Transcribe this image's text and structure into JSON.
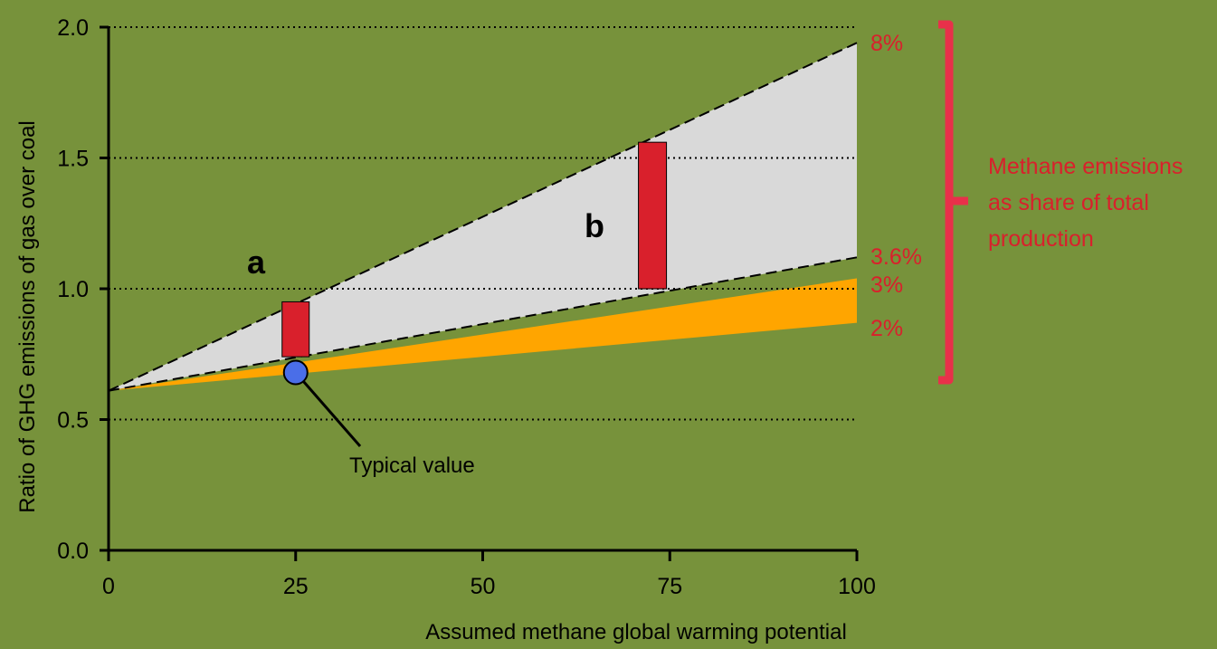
{
  "colors": {
    "background": "#77923b",
    "gray_band": "#d9d9d9",
    "orange_band": "#ffa500",
    "red_bar": "#d9202c",
    "percent_text": "#d9202c",
    "bracket": "#e8304a",
    "typical_point": "#4a6ee8"
  },
  "chart_data": {
    "type": "area",
    "xlabel": "Assumed methane global warming potential",
    "ylabel": "Ratio of GHG emissions of gas over coal",
    "xlim": [
      0,
      100
    ],
    "ylim": [
      0,
      2.0
    ],
    "xticks": [
      "0",
      "25",
      "50",
      "75",
      "100"
    ],
    "yticks": [
      "0.0",
      "0.5",
      "1.0",
      "1.5",
      "2.0"
    ],
    "grid": "horizontal dotted at 0.5, 1.0, 1.5, 2.0",
    "origin": {
      "x": 0,
      "y": 0.61
    },
    "series": [
      {
        "name": "8%",
        "x": [
          0,
          100
        ],
        "y": [
          0.61,
          1.94
        ],
        "style": "dashed"
      },
      {
        "name": "3.6%",
        "x": [
          0,
          100
        ],
        "y": [
          0.61,
          1.12
        ],
        "style": "dashed"
      },
      {
        "name": "3%",
        "x": [
          0,
          100
        ],
        "y": [
          0.61,
          1.04
        ],
        "style": "band edge"
      },
      {
        "name": "2%",
        "x": [
          0,
          100
        ],
        "y": [
          0.61,
          0.87
        ],
        "style": "band edge"
      }
    ],
    "bands": [
      {
        "from_series": "3.6%",
        "to_series": "8%",
        "color": "gray"
      },
      {
        "from_series": "2%",
        "to_series": "3%",
        "color": "orange"
      }
    ],
    "range_bars": [
      {
        "label": "a",
        "x": 25,
        "y_low": 0.74,
        "y_high": 0.95
      },
      {
        "label": "b",
        "x": 72.5,
        "y_low": 1.0,
        "y_high": 1.56
      }
    ],
    "typical_point": {
      "label": "Typical value",
      "x": 25,
      "y": 0.68
    },
    "bracket_label": [
      "Methane emissions",
      "as share of total",
      "production"
    ]
  }
}
